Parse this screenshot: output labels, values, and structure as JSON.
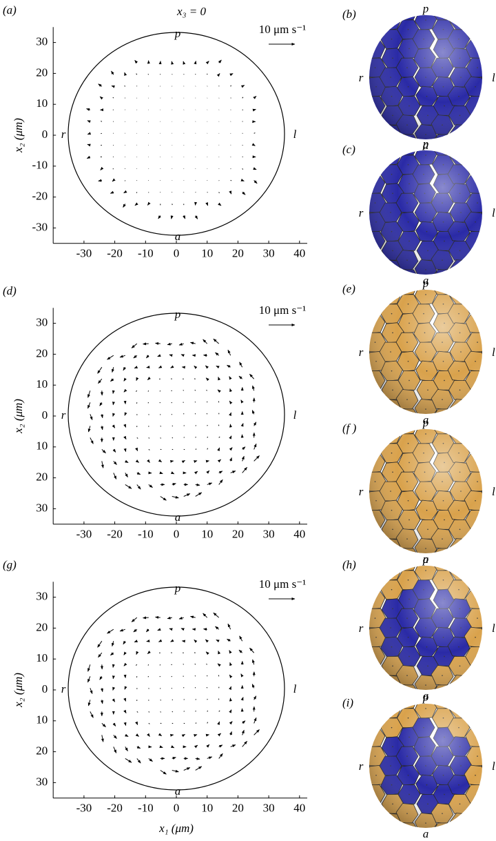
{
  "axes": {
    "xlim": [
      -40,
      42.5
    ],
    "ylim": [
      -35,
      35
    ],
    "xticks": [
      -30,
      -20,
      -10,
      0,
      10,
      20,
      30,
      40
    ],
    "xlabel": "x₁ (μm)"
  },
  "panels": [
    {
      "label": "(a)",
      "title": "x₃ = 0",
      "scale_label": "10 μm s⁻¹",
      "ylabel": "x₂ (μm)",
      "p": "p",
      "a": "a",
      "r": "r",
      "l": "l",
      "yticks": [
        30,
        20,
        10,
        0,
        -10,
        -20,
        -30
      ]
    },
    {
      "label": "(d)",
      "scale_label": "10 μm s⁻¹",
      "ylabel": "x₂ (μm)",
      "p": "p",
      "a": "a",
      "r": "r",
      "l": "l",
      "yticks": [
        30,
        20,
        10,
        0,
        {
          "value": -10,
          "label": "10"
        },
        {
          "value": -20,
          "label": "20"
        },
        {
          "value": -30,
          "label": "30"
        }
      ]
    },
    {
      "label": "(g)",
      "scale_label": "10 μm s⁻¹",
      "ylabel": "x₂ (μm)",
      "p": "p",
      "a": "a",
      "r": "r",
      "l": "l",
      "yticks": [
        30,
        20,
        10,
        0,
        {
          "value": -10,
          "label": "10"
        },
        {
          "value": -20,
          "label": "20"
        },
        {
          "value": -30,
          "label": "30"
        }
      ]
    }
  ],
  "cells": [
    {
      "label": "(b)",
      "p": "p",
      "a": "a",
      "r": "r",
      "l": "l",
      "color": "#2a2aa6",
      "rim_color": "#2a2aa6"
    },
    {
      "label": "(c)",
      "p": "p",
      "a": "a",
      "r": "r",
      "l": "l",
      "color": "#2a2aa6",
      "rim_color": "#2a2aa6"
    },
    {
      "label": "(e)",
      "p": "p",
      "a": "a",
      "r": "r",
      "l": "l",
      "color": "#d9a24c",
      "rim_color": "#d9a24c"
    },
    {
      "label": "(f )",
      "p": "p",
      "a": "a",
      "r": "r",
      "l": "l",
      "color": "#d9a24c",
      "rim_color": "#d9a24c"
    },
    {
      "label": "(h)",
      "p": "p",
      "a": "a",
      "r": "r",
      "l": "l",
      "color": "#2a2aa6",
      "rim_color": "#d9a24c"
    },
    {
      "label": "(i)",
      "p": "p",
      "a": "a",
      "r": "r",
      "l": "l",
      "color": "#2a2aa6",
      "rim_color": "#d9a24c"
    }
  ]
}
